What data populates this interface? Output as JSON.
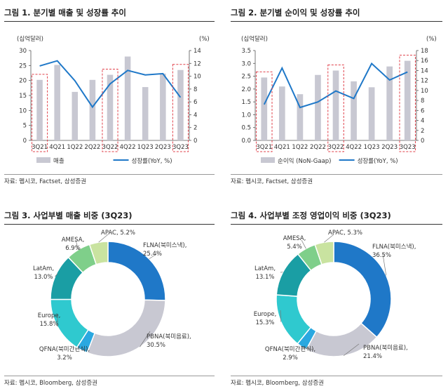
{
  "figures": [
    {
      "title": "그림 1.  분기별 매출 및 성장률 추이",
      "source": "자료: 펩시코, Factset, 삼성증권"
    },
    {
      "title": "그림 2.  분기별 순이익 및 성장률 추이",
      "source": "자료: 펩시코, Factset, 삼성증권"
    },
    {
      "title": "그림 3.  사업부별 매출 비중 (3Q23)",
      "source": "자료: 펩시코, Bloomberg, 삼성증권"
    },
    {
      "title": "그림 4.  사업부별 조정 영업이익 비중 (3Q23)",
      "source": "자료: 펩시코, Bloomberg, 삼성증권"
    }
  ],
  "colors": {
    "bar": "#c8c8d2",
    "line": "#1f78c8",
    "highlight": "#e0404a",
    "donut": [
      "#1f78c8",
      "#c8c8d2",
      "#2aa8e0",
      "#2fc9cf",
      "#1a9ea4",
      "#7fcf8a",
      "#c9e3a0"
    ]
  },
  "chart_data": [
    {
      "type": "bar",
      "categories": [
        "3Q21",
        "4Q21",
        "1Q22",
        "2Q22",
        "3Q22",
        "4Q22",
        "1Q23",
        "2Q23",
        "3Q23"
      ],
      "highlighted": [
        "3Q21",
        "3Q22",
        "3Q23"
      ],
      "series": [
        {
          "name": "매출",
          "type": "bar",
          "axis": "left",
          "values": [
            20.2,
            25.2,
            16.2,
            20.2,
            21.9,
            28.0,
            17.8,
            22.3,
            23.5
          ]
        },
        {
          "name": "성장률(YoY, %)",
          "type": "line",
          "axis": "right",
          "values": [
            11.6,
            12.4,
            9.3,
            5.2,
            8.8,
            10.9,
            10.2,
            10.4,
            6.7
          ]
        }
      ],
      "ylabel_left": "(십억달러)",
      "ylabel_right": "(%)",
      "ylim_left": [
        0,
        30
      ],
      "yticks_left": [
        "0",
        "5",
        "10",
        "15",
        "20",
        "25",
        "30"
      ],
      "ylim_right": [
        0,
        14
      ],
      "yticks_right": [
        "0",
        "2",
        "4",
        "6",
        "8",
        "10",
        "12",
        "14"
      ],
      "grid": false,
      "legend": "bottom"
    },
    {
      "type": "bar",
      "categories": [
        "3Q21",
        "4Q21",
        "1Q22",
        "2Q22",
        "3Q22",
        "4Q22",
        "1Q23",
        "2Q23",
        "3Q23"
      ],
      "highlighted": [
        "3Q21",
        "3Q22",
        "3Q23"
      ],
      "series": [
        {
          "name": "순이익 (NoN-Gaap)",
          "type": "bar",
          "axis": "left",
          "values": [
            2.45,
            2.1,
            1.8,
            2.55,
            2.72,
            2.3,
            2.07,
            2.88,
            3.1
          ]
        },
        {
          "name": "성장률(YoY, %)",
          "type": "line",
          "axis": "right",
          "values": [
            7.2,
            14.5,
            6.6,
            7.7,
            9.9,
            8.4,
            15.4,
            12.1,
            13.7
          ]
        }
      ],
      "ylabel_left": "(십억달러)",
      "ylabel_right": "(%)",
      "ylim_left": [
        0,
        3.5
      ],
      "yticks_left": [
        "0.0",
        "0.5",
        "1.0",
        "1.5",
        "2.0",
        "2.5",
        "3.0",
        "3.5"
      ],
      "ylim_right": [
        0,
        18
      ],
      "yticks_right": [
        "0",
        "2",
        "4",
        "6",
        "8",
        "10",
        "12",
        "14",
        "16",
        "18"
      ],
      "grid": false,
      "legend": "bottom"
    },
    {
      "type": "pie",
      "donut": true,
      "slices": [
        {
          "name": "FLNA(북미스낵)",
          "pct_label": "25.4%",
          "value": 25.4
        },
        {
          "name": "PBNA(북미음료)",
          "pct_label": "30.5%",
          "value": 30.5
        },
        {
          "name": "QFNA(북미간편식)",
          "pct_label": "3.2%",
          "value": 3.2
        },
        {
          "name": "Europe",
          "pct_label": "15.8%",
          "value": 15.8
        },
        {
          "name": "LatAm",
          "pct_label": "13.0%",
          "value": 13.0
        },
        {
          "name": "AMESA",
          "pct_label": "6.9%",
          "value": 6.9
        },
        {
          "name": "APAC",
          "pct_label": "5.2%",
          "value": 5.2
        }
      ]
    },
    {
      "type": "pie",
      "donut": true,
      "slices": [
        {
          "name": "FLNA(북미스낵)",
          "pct_label": "36.5%",
          "value": 36.5
        },
        {
          "name": "PBNA(북미음료)",
          "pct_label": "21.4%",
          "value": 21.4
        },
        {
          "name": "QFNA(북미간편식)",
          "pct_label": "2.9%",
          "value": 2.9
        },
        {
          "name": "Europe",
          "pct_label": "15.3%",
          "value": 15.3
        },
        {
          "name": "LatAm",
          "pct_label": "13.1%",
          "value": 13.1
        },
        {
          "name": "AMESA",
          "pct_label": "5.4%",
          "value": 5.4
        },
        {
          "name": "APAC",
          "pct_label": "5.3%",
          "value": 5.3
        }
      ]
    }
  ]
}
